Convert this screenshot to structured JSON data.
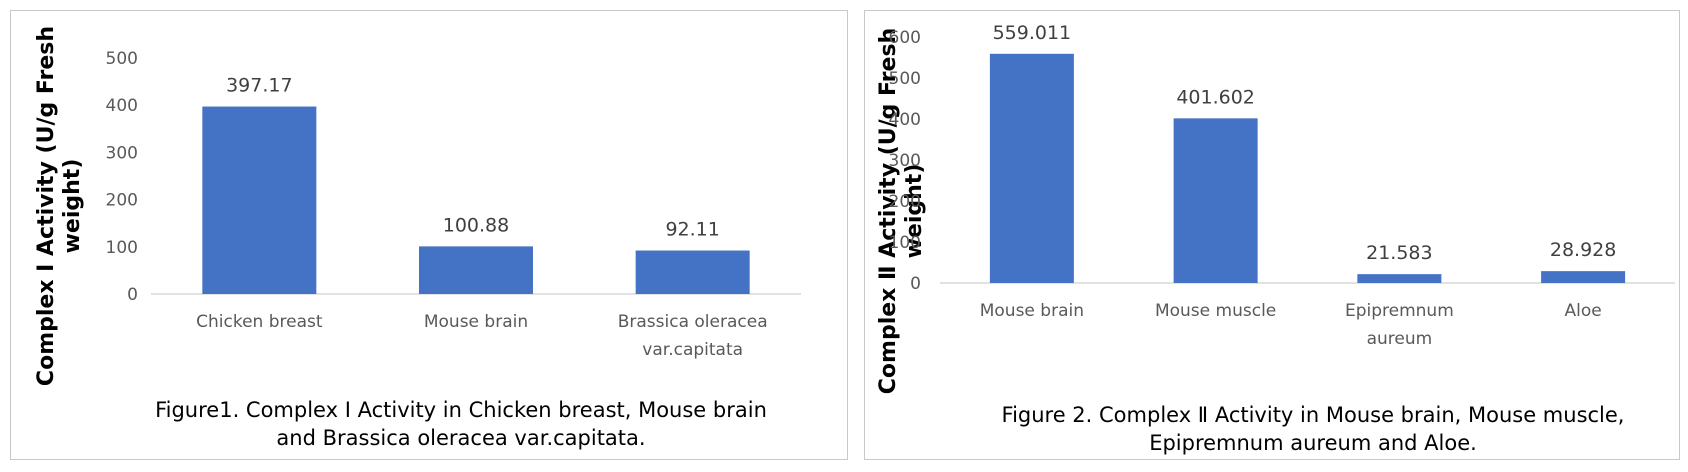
{
  "chart_data": [
    {
      "type": "bar",
      "categories": [
        "Chicken breast",
        "Mouse brain",
        "Brassica oleracea var.capitata"
      ],
      "category_lines": [
        [
          "Chicken breast"
        ],
        [
          "Mouse brain"
        ],
        [
          "Brassica oleracea",
          "var.capitata"
        ]
      ],
      "values": [
        397.17,
        100.88,
        92.11
      ],
      "value_labels": [
        "397.17",
        "100.88",
        "92.11"
      ],
      "yticks": [
        "0",
        "100",
        "200",
        "300",
        "400",
        "500"
      ],
      "ylim": [
        0,
        500
      ],
      "ylabel_lines": [
        "Complex I Activity (U/g Fresh",
        "weight)"
      ],
      "caption_lines": [
        "Figure1. Complex I Activity in Chicken breast, Mouse brain",
        "and Brassica oleracea var.capitata."
      ],
      "bar_color": "#4472c4",
      "grid": false
    },
    {
      "type": "bar",
      "categories": [
        "Mouse brain",
        "Mouse muscle",
        "Epipremnum aureum",
        "Aloe"
      ],
      "category_lines": [
        [
          "Mouse brain"
        ],
        [
          "Mouse muscle"
        ],
        [
          "Epipremnum",
          "aureum"
        ],
        [
          "Aloe"
        ]
      ],
      "values": [
        559.011,
        401.602,
        21.583,
        28.928
      ],
      "value_labels": [
        "559.011",
        "401.602",
        "21.583",
        "28.928"
      ],
      "yticks": [
        "0",
        "100",
        "200",
        "300",
        "400",
        "500",
        "600"
      ],
      "ylim": [
        0,
        600
      ],
      "ylabel_lines": [
        "Complex Ⅱ Activity (U/g Fresh",
        "weight)"
      ],
      "caption_lines": [
        "Figure 2. Complex Ⅱ Activity in Mouse brain, Mouse muscle,",
        "Epipremnum aureum and Aloe."
      ],
      "bar_color": "#4472c4",
      "grid": false
    }
  ]
}
